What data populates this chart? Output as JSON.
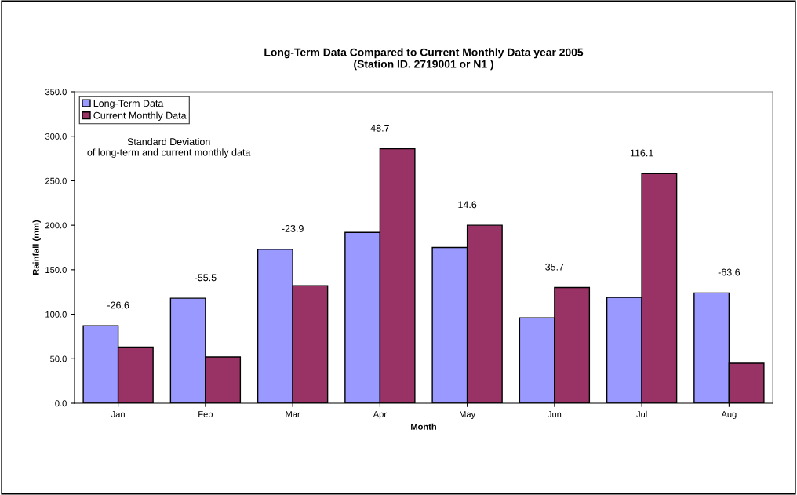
{
  "chart_data": {
    "type": "bar",
    "title": "Long-Term Data Compared to Current Monthly Data year 2005\n(Station ID. 2719001 or N1 )",
    "xlabel": "Month",
    "ylabel": "Rainfall (mm)",
    "categories": [
      "Jan",
      "Feb",
      "Mar",
      "Apr",
      "May",
      "Jun",
      "Jul",
      "Aug"
    ],
    "series": [
      {
        "name": "Long-Term Data",
        "color": "#9999ff",
        "values": [
          87,
          118,
          173,
          192,
          175,
          96,
          119,
          124
        ]
      },
      {
        "name": "Current Monthly Data",
        "color": "#993366",
        "values": [
          63,
          52,
          132,
          286,
          200,
          130,
          258,
          45
        ]
      }
    ],
    "ylim": [
      0,
      350
    ],
    "yticks": [
      {
        "value": 0,
        "label": "0.0"
      },
      {
        "value": 50,
        "label": "50.0"
      },
      {
        "value": 100,
        "label": "100.0"
      },
      {
        "value": 150,
        "label": "150.0"
      },
      {
        "value": 200,
        "label": "200.0"
      },
      {
        "value": 250,
        "label": "250.0"
      },
      {
        "value": 300,
        "label": "300.0"
      },
      {
        "value": 350,
        "label": "350.0"
      }
    ],
    "annotations": [
      "Standard Deviation\nof long-term and current monthly data",
      "-26.6",
      "-55.5",
      "-23.9",
      "48.7",
      "14.6",
      "35.7",
      "116.1",
      "-63.6"
    ],
    "grid": false,
    "legend": "top left"
  }
}
